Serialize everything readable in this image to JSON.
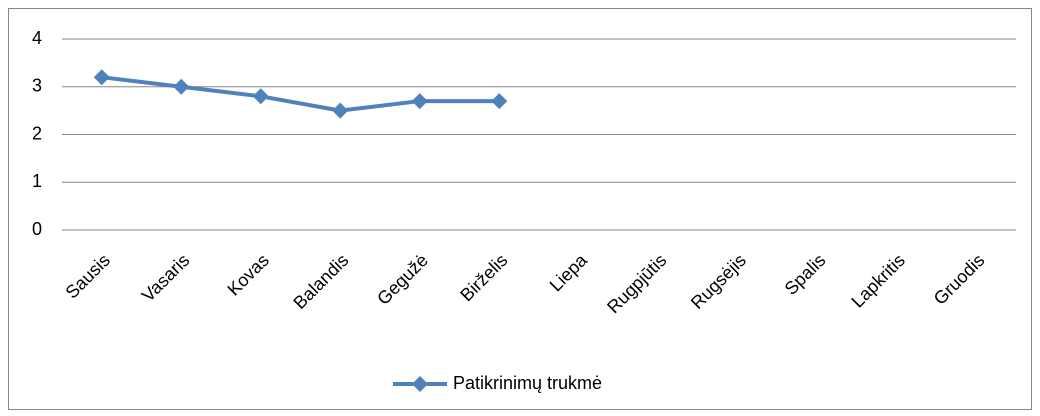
{
  "chart_data": {
    "type": "line",
    "categories": [
      "Sausis",
      "Vasaris",
      "Kovas",
      "Balandis",
      "Gegužė",
      "Birželis",
      "Liepa",
      "Rugpjūtis",
      "Rugsėjis",
      "Spalis",
      "Lapkritis",
      "Gruodis"
    ],
    "series": [
      {
        "name": "Patikrinimų trukmė",
        "color": "#4f81bd",
        "values": [
          3.2,
          3.0,
          2.8,
          2.5,
          2.7,
          2.7,
          null,
          null,
          null,
          null,
          null,
          null
        ]
      }
    ],
    "ylim": [
      0,
      4
    ],
    "yticks": [
      0,
      1,
      2,
      3,
      4
    ],
    "grid": true,
    "legend": "bottom"
  }
}
